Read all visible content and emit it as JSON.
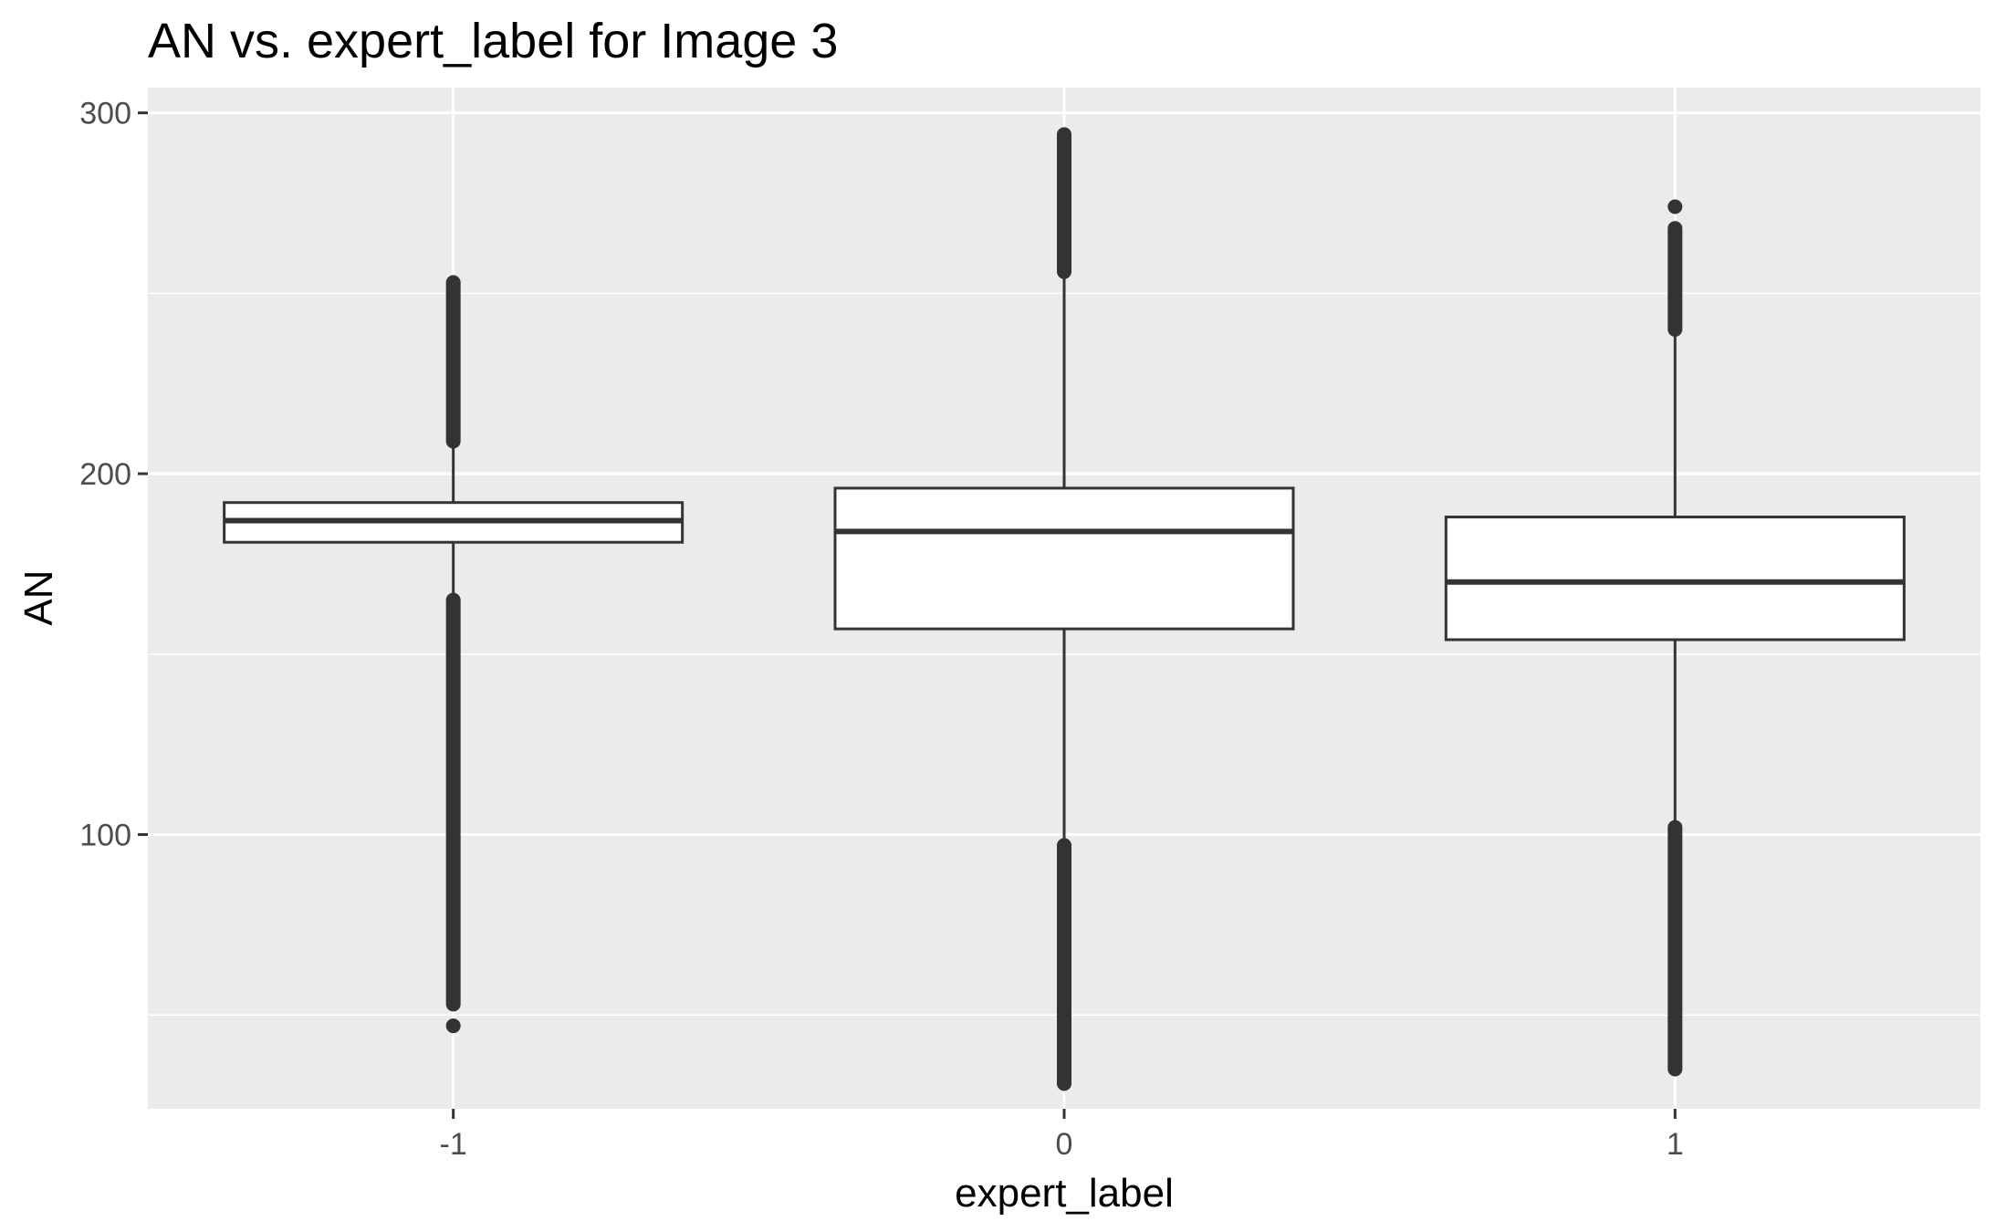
{
  "chart_data": {
    "type": "boxplot",
    "title": "AN vs. expert_label for Image 3",
    "xlabel": "expert_label",
    "ylabel": "AN",
    "categories": [
      "-1",
      "0",
      "1"
    ],
    "ylim": [
      24,
      307
    ],
    "yticks": [
      100,
      200,
      300
    ],
    "grid": true,
    "boxes": [
      {
        "category": "-1",
        "whisker_low": 165,
        "q1": 181,
        "median": 187,
        "q3": 192,
        "whisker_high": 208,
        "outlier_ranges": [
          [
            53,
            165
          ],
          [
            209,
            253
          ]
        ],
        "outlier_points": [
          47
        ]
      },
      {
        "category": "0",
        "whisker_low": 98,
        "q1": 157,
        "median": 184,
        "q3": 196,
        "whisker_high": 255,
        "outlier_ranges": [
          [
            31,
            97
          ],
          [
            256,
            294
          ]
        ],
        "outlier_points": []
      },
      {
        "category": "1",
        "whisker_low": 102,
        "q1": 154,
        "median": 170,
        "q3": 188,
        "whisker_high": 239,
        "outlier_ranges": [
          [
            35,
            102
          ],
          [
            240,
            268
          ]
        ],
        "outlier_points": [
          274
        ]
      }
    ],
    "colors": {
      "panel": "#ebebeb",
      "grid": "#ffffff",
      "box_fill": "#ffffff",
      "box_line": "#333333",
      "tick": "#333333",
      "tick_label": "#4d4d4d"
    }
  }
}
